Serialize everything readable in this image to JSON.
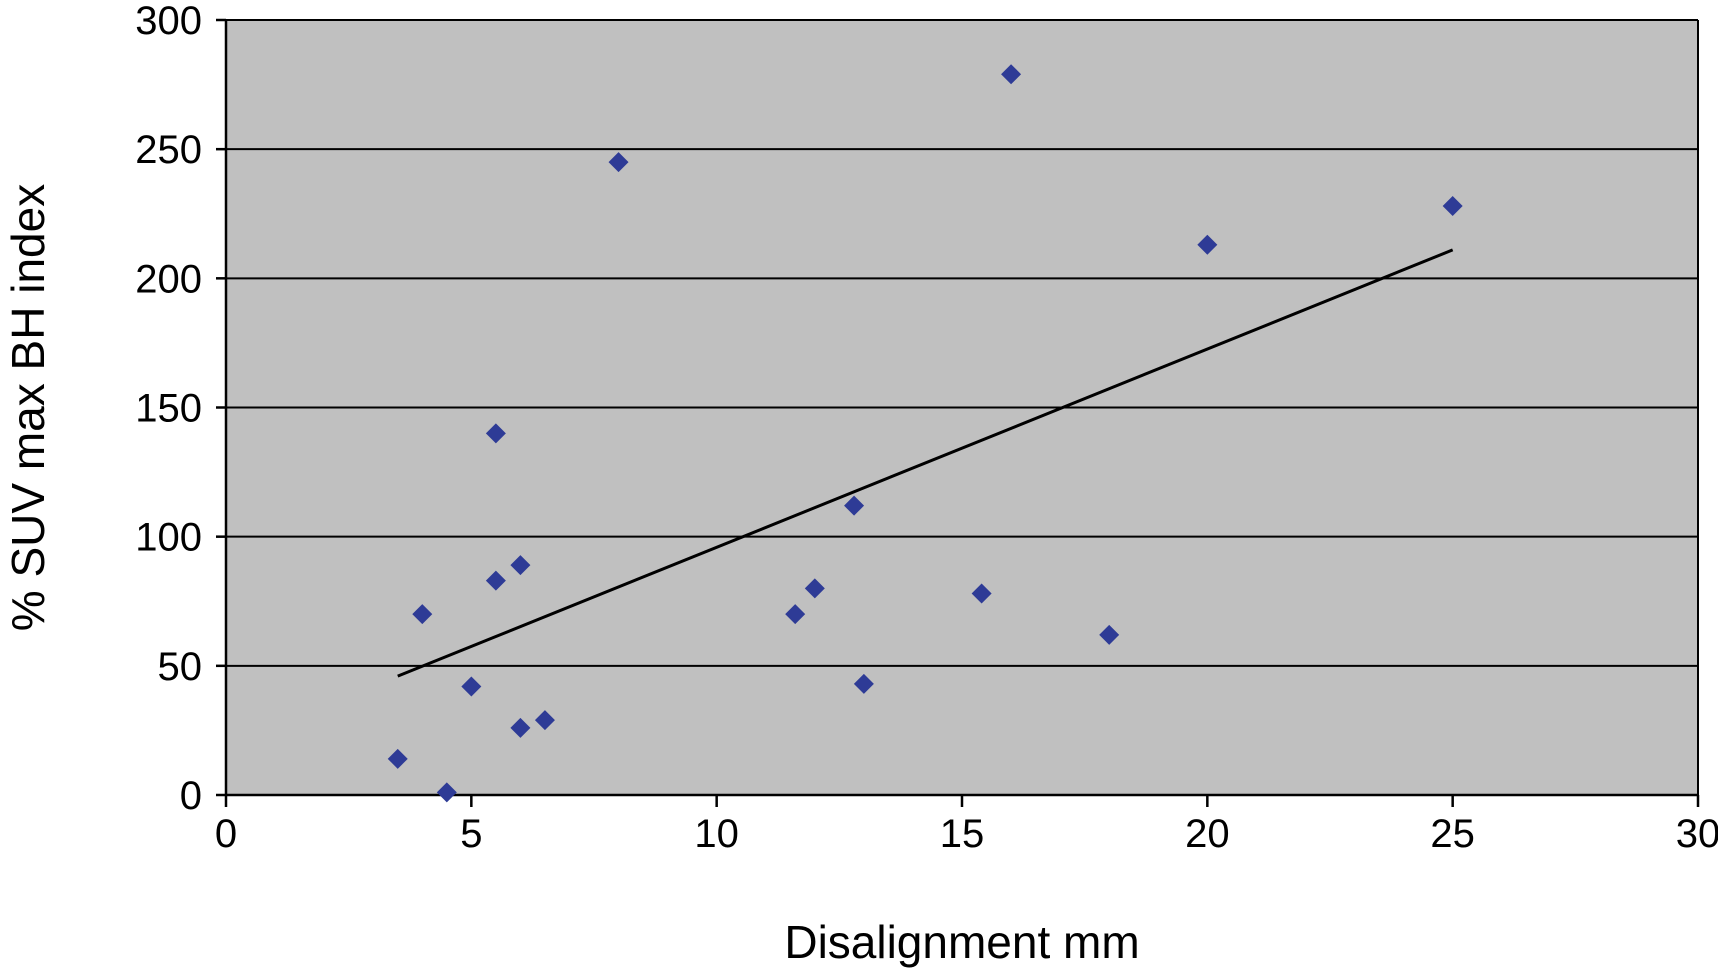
{
  "chart_data": {
    "type": "scatter",
    "title": "",
    "xlabel": "Disalignment mm",
    "ylabel": "% SUV max BH index",
    "xlim": [
      0,
      30
    ],
    "ylim": [
      0,
      300
    ],
    "x_ticks": [
      0,
      5,
      10,
      15,
      20,
      25,
      30
    ],
    "y_ticks": [
      0,
      50,
      100,
      150,
      200,
      250,
      300
    ],
    "grid": "horizontal",
    "legend": "none",
    "plot_background": "#c0c0c0",
    "marker_color": "#2e3b96",
    "trendline_color": "#000000",
    "series": [
      {
        "points": [
          {
            "x": 3.5,
            "y": 14
          },
          {
            "x": 4.0,
            "y": 70
          },
          {
            "x": 4.5,
            "y": 1
          },
          {
            "x": 5.0,
            "y": 42
          },
          {
            "x": 5.5,
            "y": 83
          },
          {
            "x": 5.5,
            "y": 140
          },
          {
            "x": 6.0,
            "y": 89
          },
          {
            "x": 6.0,
            "y": 26
          },
          {
            "x": 6.5,
            "y": 29
          },
          {
            "x": 8.0,
            "y": 245
          },
          {
            "x": 11.6,
            "y": 70
          },
          {
            "x": 12.0,
            "y": 80
          },
          {
            "x": 12.8,
            "y": 112
          },
          {
            "x": 13.0,
            "y": 43
          },
          {
            "x": 15.4,
            "y": 78
          },
          {
            "x": 16.0,
            "y": 279
          },
          {
            "x": 18.0,
            "y": 62
          },
          {
            "x": 20.0,
            "y": 213
          },
          {
            "x": 25.0,
            "y": 228
          }
        ]
      }
    ],
    "trendline": {
      "x": [
        3.5,
        25.0
      ],
      "y": [
        46,
        211
      ]
    }
  }
}
